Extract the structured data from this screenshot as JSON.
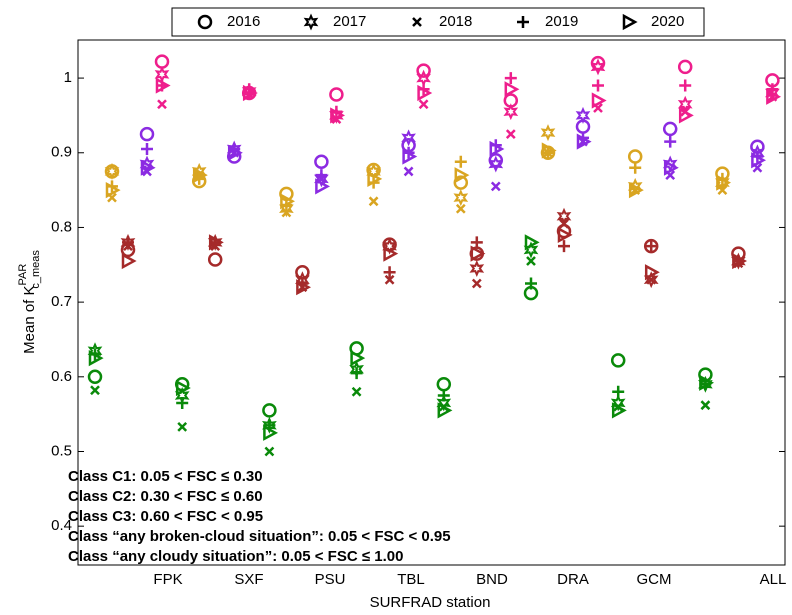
{
  "chart_data": {
    "type": "scatter",
    "xlabel": "SURFRAD station",
    "ylabel": {
      "text": "Mean of K",
      "superscript": "PAR",
      "subscript": "c_meas"
    },
    "categories": [
      "FPK",
      "SXF",
      "PSU",
      "TBL",
      "BND",
      "DRA",
      "GCM",
      "ALL"
    ],
    "ylim": [
      0.348,
      1.051
    ],
    "yticks": [
      0.4,
      0.5,
      0.6,
      0.7,
      0.8,
      0.9,
      1
    ],
    "legend": {
      "names": [
        "2016",
        "2017",
        "2018",
        "2019",
        "2020"
      ],
      "markers": [
        "circle",
        "star",
        "x",
        "plus",
        "triangle"
      ],
      "position": "top"
    },
    "series": [
      {
        "name": "Class “any cloudy situation”: 0.05 < FSC ≤ 1.00",
        "color": "#0a8a0a",
        "values": [
          [
            0.6,
            0.635,
            0.582,
            0.63,
            0.625
          ],
          [
            0.59,
            0.575,
            0.533,
            0.565,
            0.585
          ],
          [
            0.555,
            0.535,
            0.5,
            0.535,
            0.525
          ],
          [
            0.638,
            0.61,
            0.58,
            0.605,
            0.625
          ],
          [
            0.59,
            0.565,
            0.56,
            0.575,
            0.555
          ],
          [
            0.712,
            0.77,
            0.755,
            0.725,
            0.78
          ],
          [
            0.622,
            0.565,
            0.56,
            0.58,
            0.555
          ],
          [
            0.603,
            0.59,
            0.562,
            0.59,
            0.592
          ]
        ]
      },
      {
        "name": "Class “any broken-cloud situation”: 0.05 < FSC < 0.95",
        "color": "#d9a521",
        "values": [
          [
            0.875,
            0.875,
            0.84,
            0.855,
            0.85
          ],
          [
            0.862,
            0.875,
            0.87,
            0.865,
            0.87
          ],
          [
            0.845,
            0.825,
            0.82,
            0.83,
            0.835
          ],
          [
            0.877,
            0.875,
            0.835,
            0.86,
            0.865
          ],
          [
            0.86,
            0.84,
            0.825,
            0.888,
            0.87
          ],
          [
            0.9,
            0.927,
            0.9,
            0.9,
            0.903
          ],
          [
            0.895,
            0.855,
            0.85,
            0.88,
            0.85
          ],
          [
            0.872,
            0.86,
            0.85,
            0.865,
            0.86
          ]
        ]
      },
      {
        "name": "Class C3: 0.60 < FSC < 0.95",
        "color": "#a52a2a",
        "values": [
          [
            0.77,
            0.78,
            0.775,
            0.78,
            0.755
          ],
          [
            0.757,
            0.78,
            0.775,
            0.78,
            0.78
          ],
          [
            0.74,
            0.73,
            0.72,
            0.725,
            0.72
          ],
          [
            0.777,
            0.775,
            0.73,
            0.74,
            0.765
          ],
          [
            0.765,
            0.745,
            0.725,
            0.78,
            0.765
          ],
          [
            0.795,
            0.815,
            0.805,
            0.775,
            0.79
          ],
          [
            0.775,
            0.73,
            0.73,
            0.775,
            0.74
          ],
          [
            0.765,
            0.755,
            0.752,
            0.755,
            0.755
          ]
        ]
      },
      {
        "name": "Class C2: 0.30 < FSC ≤ 0.60",
        "color": "#8b2be2",
        "values": [
          [
            0.925,
            0.885,
            0.875,
            0.905,
            0.88
          ],
          [
            0.895,
            0.905,
            0.9,
            0.905,
            0.9
          ],
          [
            0.888,
            0.865,
            0.865,
            0.87,
            0.855
          ],
          [
            0.91,
            0.92,
            0.875,
            0.9,
            0.895
          ],
          [
            0.89,
            0.885,
            0.855,
            0.91,
            0.905
          ],
          [
            0.935,
            0.95,
            0.915,
            0.92,
            0.915
          ],
          [
            0.932,
            0.885,
            0.87,
            0.915,
            0.88
          ],
          [
            0.908,
            0.9,
            0.88,
            0.895,
            0.89
          ]
        ]
      },
      {
        "name": "Class C1: 0.05 < FSC ≤ 0.30",
        "color": "#ee1e8c",
        "values": [
          [
            1.022,
            1.005,
            0.965,
            0.99,
            0.99
          ],
          [
            0.98,
            0.982,
            0.978,
            0.985,
            0.98
          ],
          [
            0.978,
            0.95,
            0.945,
            0.955,
            0.95
          ],
          [
            1.01,
            1.0,
            0.965,
            0.985,
            0.98
          ],
          [
            0.97,
            0.955,
            0.925,
            1.0,
            0.985
          ],
          [
            1.02,
            1.015,
            0.96,
            0.99,
            0.97
          ],
          [
            1.015,
            0.965,
            0.955,
            0.99,
            0.95
          ],
          [
            0.997,
            0.98,
            0.975,
            0.985,
            0.975
          ]
        ]
      }
    ]
  }
}
